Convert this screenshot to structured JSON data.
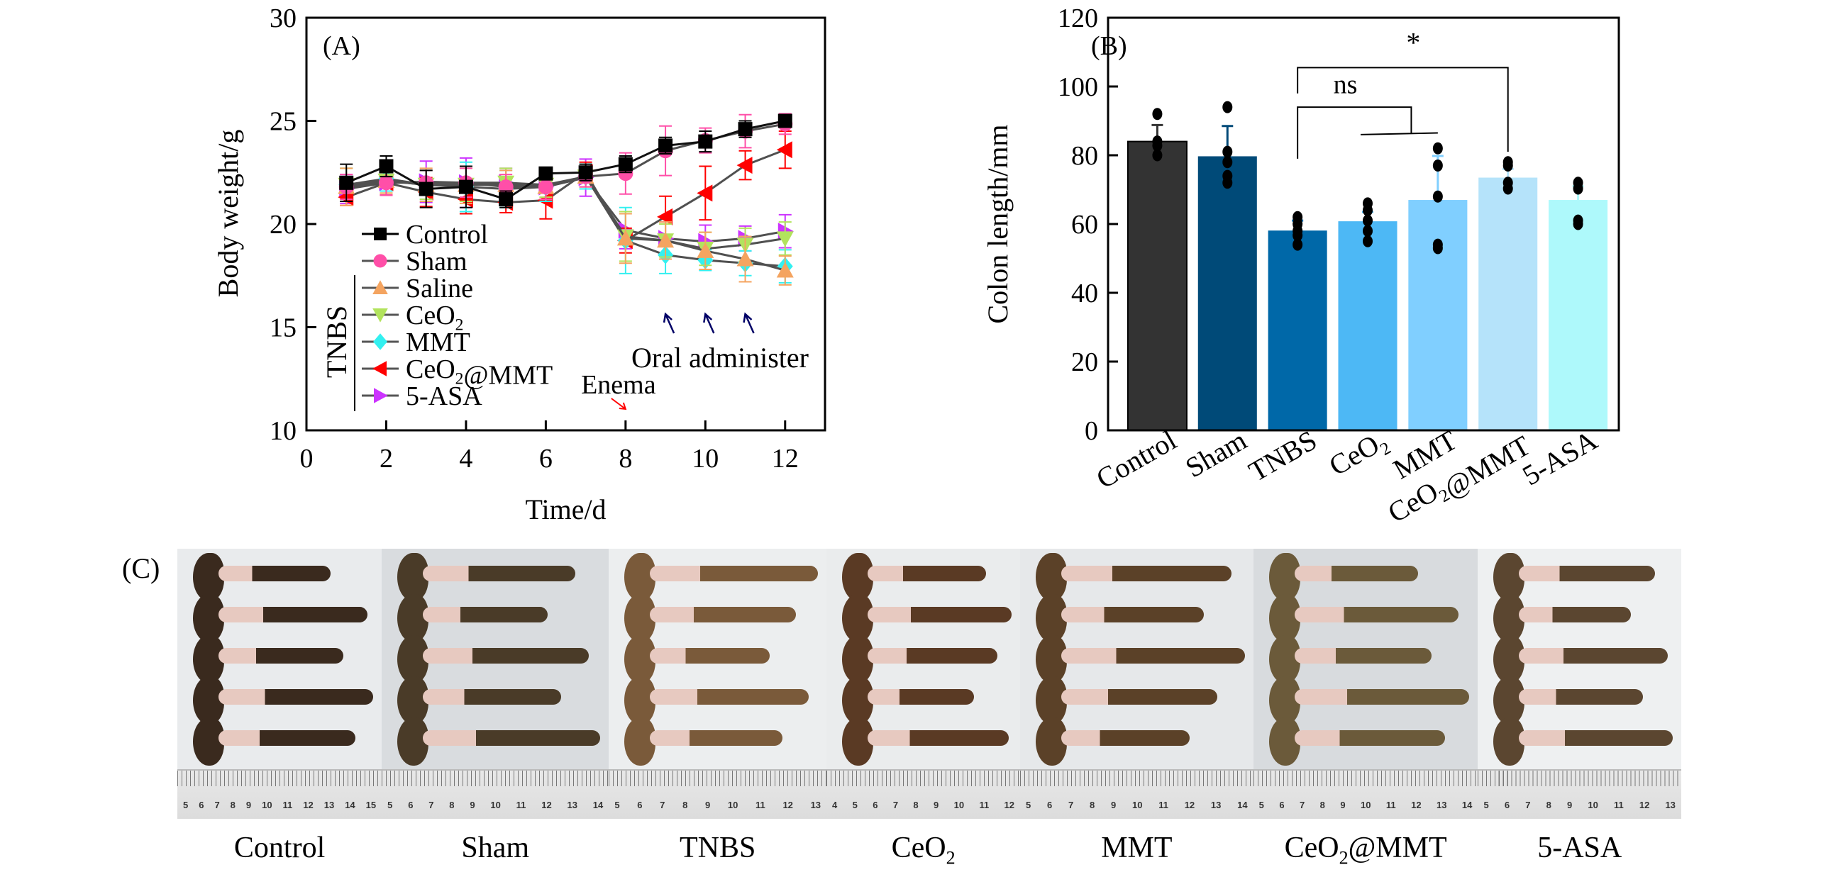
{
  "chart_data": [
    {
      "type": "line",
      "panel_label": "(A)",
      "title": "",
      "xlabel": "Time/d",
      "ylabel": "Body weight/g",
      "xlim": [
        0,
        13
      ],
      "ylim": [
        10,
        30
      ],
      "xticks": [
        0,
        2,
        4,
        6,
        8,
        10,
        12
      ],
      "yticks": [
        10,
        15,
        20,
        25,
        30
      ],
      "x": [
        1,
        2,
        3,
        4,
        5,
        6,
        7,
        8,
        9,
        10,
        11,
        12
      ],
      "legend_position": "lower-left",
      "legend_group_label": "TNBS",
      "series": [
        {
          "name": "Control",
          "marker": "square",
          "color": "#000000",
          "values": [
            22.0,
            22.8,
            21.7,
            21.8,
            21.2,
            22.45,
            22.5,
            22.9,
            23.8,
            24.0,
            24.6,
            25.0
          ],
          "errors": [
            0.9,
            0.5,
            0.9,
            1.0,
            0.4,
            0.3,
            0.4,
            0.4,
            0.4,
            0.5,
            0.4,
            0.3
          ]
        },
        {
          "name": "Sham",
          "marker": "circle",
          "color": "#ff4fa8",
          "values": [
            21.8,
            22.0,
            22.0,
            22.0,
            21.8,
            21.8,
            22.3,
            22.45,
            23.55,
            24.05,
            24.5,
            24.85
          ],
          "errors": [
            0.6,
            0.6,
            0.6,
            0.7,
            0.6,
            0.6,
            0.5,
            1.0,
            1.2,
            0.6,
            0.8,
            0.5
          ]
        },
        {
          "name": "Saline",
          "marker": "triangle-up",
          "color": "#f4a460",
          "tnbs_group": true,
          "values": [
            21.8,
            22.1,
            21.9,
            21.9,
            21.9,
            21.8,
            22.3,
            19.3,
            19.2,
            18.7,
            18.3,
            17.75
          ],
          "errors": [
            0.9,
            0.6,
            0.8,
            0.9,
            0.7,
            0.6,
            0.5,
            1.2,
            0.9,
            0.9,
            1.1,
            0.7
          ]
        },
        {
          "name": "CeO2",
          "display_name": "CeO₂",
          "marker": "triangle-down",
          "color": "#b2e35d",
          "tnbs_group": true,
          "values": [
            21.9,
            22.1,
            21.9,
            21.9,
            22.0,
            21.9,
            22.3,
            19.4,
            19.2,
            18.8,
            19.0,
            19.3
          ],
          "errors": [
            0.8,
            0.6,
            0.7,
            0.8,
            0.7,
            0.6,
            0.5,
            1.2,
            0.8,
            0.8,
            0.8,
            0.8
          ]
        },
        {
          "name": "MMT",
          "marker": "diamond",
          "color": "#33f0f0",
          "tnbs_group": true,
          "values": [
            21.9,
            22.2,
            21.9,
            21.8,
            21.7,
            21.8,
            22.3,
            19.2,
            18.5,
            18.25,
            18.1,
            17.95
          ],
          "errors": [
            0.8,
            0.6,
            0.7,
            1.2,
            0.9,
            0.7,
            0.6,
            1.6,
            0.9,
            0.5,
            0.6,
            0.8
          ]
        },
        {
          "name": "CeO2@MMT",
          "display_name": "CeO₂@MMT",
          "marker": "triangle-left",
          "color": "#ff0000",
          "tnbs_group": true,
          "values": [
            21.3,
            22.0,
            21.55,
            21.2,
            21.05,
            21.15,
            22.5,
            19.2,
            20.35,
            21.5,
            22.85,
            23.6
          ],
          "errors": [
            0.4,
            0.6,
            0.7,
            0.7,
            0.5,
            0.9,
            0.5,
            0.6,
            1.0,
            1.3,
            0.7,
            0.9
          ]
        },
        {
          "name": "5-ASA",
          "marker": "triangle-right",
          "color": "#cc33ff",
          "tnbs_group": true,
          "values": [
            21.7,
            22.0,
            22.05,
            22.0,
            22.0,
            21.8,
            22.25,
            19.7,
            19.3,
            19.15,
            19.3,
            19.65
          ],
          "errors": [
            0.7,
            0.6,
            1.0,
            1.2,
            0.7,
            0.6,
            0.9,
            0.9,
            0.8,
            0.8,
            0.6,
            0.8
          ]
        }
      ],
      "annotations": [
        {
          "text": "Enema",
          "color": "#000000",
          "arrow_color": "#ff0000",
          "points_to_day": 8
        },
        {
          "text": "Oral administer",
          "color": "#000000",
          "arrow_color": "#000066",
          "points_to_days": [
            9,
            10,
            11
          ]
        }
      ]
    },
    {
      "type": "bar",
      "panel_label": "(B)",
      "title": "",
      "xlabel": "",
      "ylabel": "Colon length/mm",
      "ylim": [
        0,
        120
      ],
      "yticks": [
        0,
        20,
        40,
        60,
        80,
        100,
        120
      ],
      "categories": [
        "Control",
        "Sham",
        "TNBS",
        "CeO₂",
        "MMT",
        "CeO₂@MMT",
        "5-ASA"
      ],
      "values": [
        84.0,
        79.7,
        58.1,
        60.8,
        67.0,
        73.5,
        67.0
      ],
      "error_upper": [
        88.8,
        88.5,
        61.0,
        63.5,
        79.8,
        76.0,
        71.0
      ],
      "colors": [
        "#333333",
        "#004a78",
        "#0068a8",
        "#4db8f5",
        "#80cfff",
        "#b5e3fa",
        "#aef9fb"
      ],
      "points": [
        [
          92,
          84,
          82.8,
          80
        ],
        [
          94,
          81,
          78,
          74,
          72
        ],
        [
          62,
          60,
          58,
          56.7,
          54
        ],
        [
          66,
          64,
          61,
          58,
          55
        ],
        [
          82,
          77,
          68,
          54,
          53
        ],
        [
          78,
          77,
          72,
          70.3
        ],
        [
          72,
          70.3,
          61,
          60
        ]
      ],
      "significance": [
        {
          "label": "ns",
          "from": "TNBS",
          "to": [
            "CeO₂",
            "MMT"
          ]
        },
        {
          "label": "*",
          "from": "TNBS",
          "to": [
            "CeO₂@MMT"
          ]
        }
      ]
    }
  ],
  "panel_c": {
    "tag": "(C)",
    "groups": [
      {
        "label": "Control",
        "bg": "#e9ebed",
        "ruler": [
          "5",
          "6",
          "7",
          "8",
          "9",
          "10",
          "11",
          "12",
          "13",
          "14",
          "15"
        ],
        "tone": "#3a2a1e"
      },
      {
        "label": "Sham",
        "bg": "#d9dcdf",
        "ruler": [
          "5",
          "6",
          "7",
          "8",
          "9",
          "10",
          "11",
          "12",
          "13",
          "14"
        ],
        "tone": "#4a3b28"
      },
      {
        "label": "TNBS",
        "bg": "#eceeef",
        "ruler": [
          "5",
          "6",
          "7",
          "8",
          "9",
          "10",
          "11",
          "12",
          "13"
        ],
        "tone": "#7a5a3a"
      },
      {
        "label": "CeO₂",
        "bg": "#eaeced",
        "ruler": [
          "4",
          "5",
          "6",
          "7",
          "8",
          "9",
          "10",
          "11",
          "12"
        ],
        "tone": "#5a3a24"
      },
      {
        "label": "MMT",
        "bg": "#e6e8ea",
        "ruler": [
          "5",
          "6",
          "7",
          "8",
          "9",
          "10",
          "11",
          "12",
          "13",
          "14"
        ],
        "tone": "#5b4128"
      },
      {
        "label": "CeO₂@MMT",
        "bg": "#d8dbde",
        "ruler": [
          "5",
          "6",
          "7",
          "8",
          "9",
          "10",
          "11",
          "12",
          "13",
          "14"
        ],
        "tone": "#6b5a3a"
      },
      {
        "label": "5-ASA",
        "bg": "#eef0f1",
        "ruler": [
          "5",
          "6",
          "7",
          "8",
          "9",
          "10",
          "11",
          "12",
          "13"
        ],
        "tone": "#5b4630"
      }
    ]
  }
}
